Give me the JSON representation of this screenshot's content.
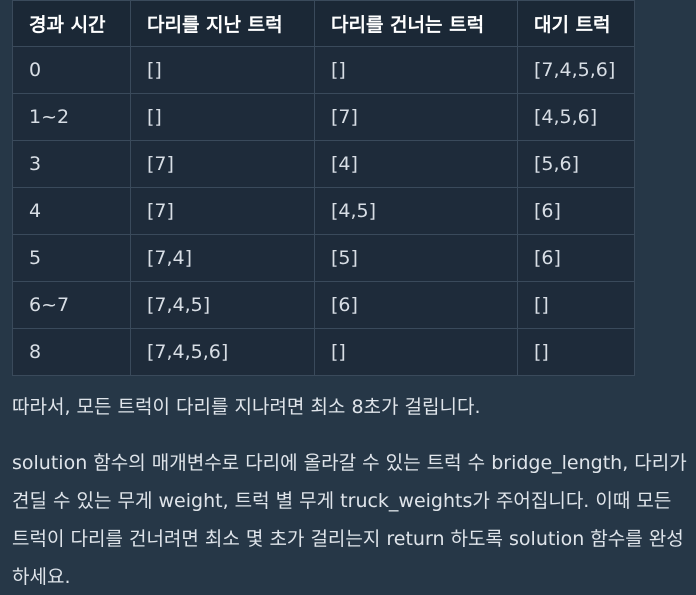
{
  "table": {
    "headers": [
      "경과 시간",
      "다리를 지난 트럭",
      "다리를 건너는 트럭",
      "대기 트럭"
    ],
    "rows": [
      [
        "0",
        "[]",
        "[]",
        "[7,4,5,6]"
      ],
      [
        "1~2",
        "[]",
        "[7]",
        "[4,5,6]"
      ],
      [
        "3",
        "[7]",
        "[4]",
        "[5,6]"
      ],
      [
        "4",
        "[7]",
        "[4,5]",
        "[6]"
      ],
      [
        "5",
        "[7,4]",
        "[5]",
        "[6]"
      ],
      [
        "6~7",
        "[7,4,5]",
        "[6]",
        "[]"
      ],
      [
        "8",
        "[7,4,5,6]",
        "[]",
        "[]"
      ]
    ]
  },
  "paragraphs": {
    "conclusion": "따라서, 모든 트럭이 다리를 지나려면 최소 8초가 걸립니다.",
    "description": "solution 함수의 매개변수로 다리에 올라갈 수 있는 트럭 수 bridge_length, 다리가 견딜 수 있는 무게 weight, 트럭 별 무게 truck_weights가 주어집니다. 이때 모든 트럭이 다리를 건너려면 최소 몇 초가 걸리는지 return 하도록 solution 함수를 완성하세요."
  }
}
